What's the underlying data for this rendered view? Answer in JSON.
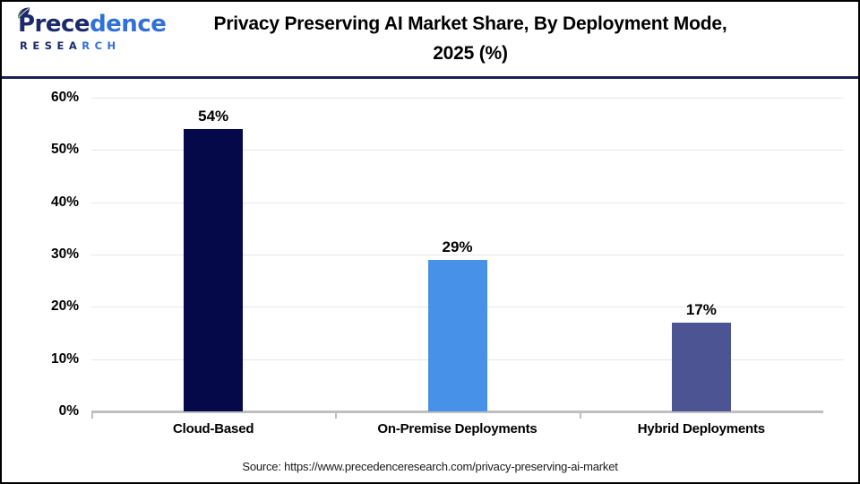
{
  "brand": {
    "navy": "#1c2a6b",
    "blue": "#3170d8",
    "navy_line": "#1b2158",
    "leaf_green": "#5d9e4a"
  },
  "logo": {
    "word_dark": "Prece",
    "word_blue": "dence",
    "sub_dark": "RESEA",
    "sub_blue": "RCH"
  },
  "title": {
    "line1": "Privacy Preserving AI Market Share, By Deployment Mode,",
    "line2": "2025 (%)"
  },
  "chart_data": {
    "type": "bar",
    "title": "Privacy Preserving AI Market Share, By Deployment Mode, 2025 (%)",
    "categories": [
      "Cloud-Based",
      "On-Premise Deployments",
      "Hybrid Deployments"
    ],
    "values": [
      54,
      29,
      17
    ],
    "value_labels": [
      "54%",
      "29%",
      "17%"
    ],
    "bar_colors": [
      "#05094a",
      "#4791e8",
      "#4d5494"
    ],
    "xlabel": "",
    "ylabel": "",
    "ylim": [
      0,
      60
    ],
    "ytick_step": 10,
    "ytick_labels": [
      "0%",
      "10%",
      "20%",
      "30%",
      "40%",
      "50%",
      "60%"
    ],
    "grid": true,
    "legend": false
  },
  "footer": {
    "source": "Source: https://www.precedenceresearch.com/privacy-preserving-ai-market"
  }
}
